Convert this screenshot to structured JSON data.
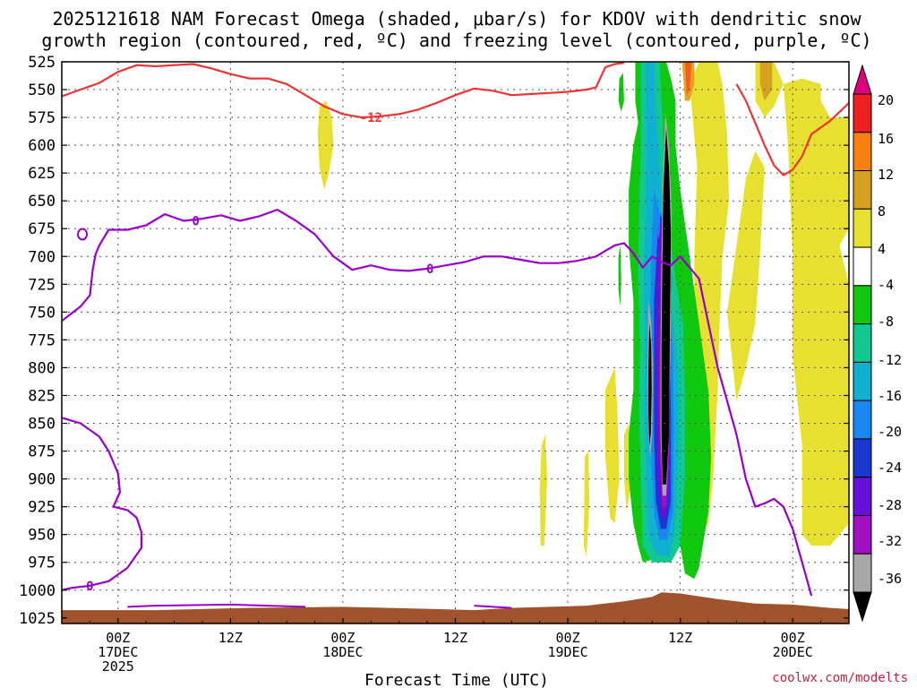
{
  "chart_data": {
    "type": "heatmap",
    "title_lines": [
      "2025121618 NAM Forecast Omega (shaded, μbar/s) for KDOV with dendritic snow",
      "growth region (contoured, red, ºC) and freezing level (contoured, purple, ºC)"
    ],
    "xlabel": "Forecast Time (UTC)",
    "x_ticks": [
      {
        "hour": 6,
        "lines": [
          "00Z",
          "17DEC",
          "2025"
        ]
      },
      {
        "hour": 18,
        "lines": [
          "12Z"
        ]
      },
      {
        "hour": 30,
        "lines": [
          "00Z",
          "18DEC"
        ]
      },
      {
        "hour": 42,
        "lines": [
          "12Z"
        ]
      },
      {
        "hour": 54,
        "lines": [
          "00Z",
          "19DEC"
        ]
      },
      {
        "hour": 66,
        "lines": [
          "12Z"
        ]
      },
      {
        "hour": 78,
        "lines": [
          "00Z",
          "20DEC"
        ]
      }
    ],
    "xlim": [
      0,
      84
    ],
    "ylabel": "",
    "y_ticks": [
      "525",
      "550",
      "575",
      "600",
      "625",
      "650",
      "675",
      "700",
      "725",
      "750",
      "775",
      "800",
      "825",
      "850",
      "875",
      "900",
      "925",
      "950",
      "975",
      "1000",
      "1025"
    ],
    "ylim": [
      1030,
      525
    ],
    "colorbar": {
      "labels": [
        "20",
        "16",
        "12",
        "8",
        "4",
        "-4",
        "-8",
        "-12",
        "-16",
        "-20",
        "-24",
        "-28",
        "-32",
        "-36"
      ],
      "colors": [
        "#e0007c",
        "#f02020",
        "#f88010",
        "#d8a020",
        "#e8e030",
        "#ffffff",
        "#10c810",
        "#10c890",
        "#10b0d0",
        "#1888f0",
        "#1838d0",
        "#6810d8",
        "#a010c0",
        "#a8a8a8",
        "#000000"
      ]
    },
    "contour_red_label": "-12",
    "contour_purple_label": "0",
    "series": [
      {
        "name": "-12 contour (dendritic snow growth)",
        "color": "#ee3333",
        "points": [
          [
            0,
            556
          ],
          [
            2,
            550
          ],
          [
            4,
            544
          ],
          [
            6,
            534
          ],
          [
            8,
            528
          ],
          [
            10,
            529
          ],
          [
            12,
            528
          ],
          [
            14,
            527
          ],
          [
            16,
            531
          ],
          [
            18,
            536
          ],
          [
            20,
            540
          ],
          [
            22,
            540
          ],
          [
            24,
            545
          ],
          [
            26,
            555
          ],
          [
            28,
            565
          ],
          [
            30,
            572
          ],
          [
            32,
            575
          ],
          [
            34,
            574
          ],
          [
            36,
            572
          ],
          [
            38,
            568
          ],
          [
            40,
            562
          ],
          [
            42,
            555
          ],
          [
            44,
            549
          ],
          [
            46,
            551
          ],
          [
            48,
            555
          ],
          [
            50,
            554
          ],
          [
            52,
            553
          ],
          [
            54,
            552
          ],
          [
            56,
            550
          ],
          [
            57,
            548
          ],
          [
            58,
            530
          ],
          [
            59,
            527
          ],
          [
            60,
            526
          ]
        ]
      },
      {
        "name": "-12 contour (eastern segment)",
        "color": "#ee3333",
        "points": [
          [
            72,
            545
          ],
          [
            73,
            560
          ],
          [
            74,
            580
          ],
          [
            75,
            600
          ],
          [
            76,
            618
          ],
          [
            77,
            627
          ],
          [
            78,
            622
          ],
          [
            79,
            610
          ],
          [
            80,
            590
          ],
          [
            81,
            584
          ],
          [
            82,
            578
          ],
          [
            83,
            570
          ],
          [
            84,
            562
          ]
        ]
      },
      {
        "name": "0 contour (freezing level)",
        "color": "#9900cc",
        "points": [
          [
            0,
            758
          ],
          [
            2,
            745
          ],
          [
            3,
            735
          ],
          [
            3.3,
            712
          ],
          [
            3.6,
            698
          ],
          [
            4,
            690
          ],
          [
            5,
            676
          ],
          [
            7,
            676
          ],
          [
            9,
            672
          ],
          [
            11,
            662
          ],
          [
            13,
            668
          ],
          [
            15,
            666
          ],
          [
            17,
            663
          ],
          [
            19,
            668
          ],
          [
            21,
            664
          ],
          [
            23,
            658
          ],
          [
            25,
            668
          ],
          [
            27,
            680
          ],
          [
            29,
            700
          ],
          [
            31,
            712
          ],
          [
            33,
            708
          ],
          [
            35,
            712
          ],
          [
            37,
            713
          ],
          [
            39,
            711
          ],
          [
            41,
            708
          ],
          [
            43,
            705
          ],
          [
            45,
            700
          ],
          [
            47,
            700
          ],
          [
            49,
            703
          ],
          [
            51,
            706
          ],
          [
            53,
            706
          ],
          [
            55,
            704
          ],
          [
            57,
            700
          ],
          [
            58,
            695
          ],
          [
            59,
            690
          ],
          [
            60,
            688
          ],
          [
            61,
            697
          ],
          [
            62,
            710
          ],
          [
            63,
            700
          ],
          [
            64,
            705
          ],
          [
            65,
            708
          ],
          [
            66,
            700
          ],
          [
            68,
            720
          ],
          [
            69,
            760
          ],
          [
            70,
            800
          ],
          [
            71,
            830
          ],
          [
            72,
            860
          ],
          [
            73,
            900
          ],
          [
            74,
            925
          ],
          [
            75,
            922
          ],
          [
            76,
            918
          ],
          [
            77,
            925
          ],
          [
            78,
            945
          ],
          [
            79,
            975
          ],
          [
            80,
            1005
          ]
        ]
      },
      {
        "name": "0 contour (lower left)",
        "color": "#9900cc",
        "points": [
          [
            0,
            845
          ],
          [
            2,
            850
          ],
          [
            4,
            862
          ],
          [
            5,
            875
          ],
          [
            6,
            895
          ],
          [
            6.2,
            912
          ],
          [
            5.5,
            925
          ],
          [
            7,
            928
          ],
          [
            8,
            935
          ],
          [
            8.5,
            948
          ],
          [
            8.5,
            962
          ],
          [
            7,
            980
          ],
          [
            5,
            992
          ],
          [
            3,
            996
          ],
          [
            1,
            998
          ],
          [
            0,
            1000
          ]
        ]
      }
    ]
  }
}
